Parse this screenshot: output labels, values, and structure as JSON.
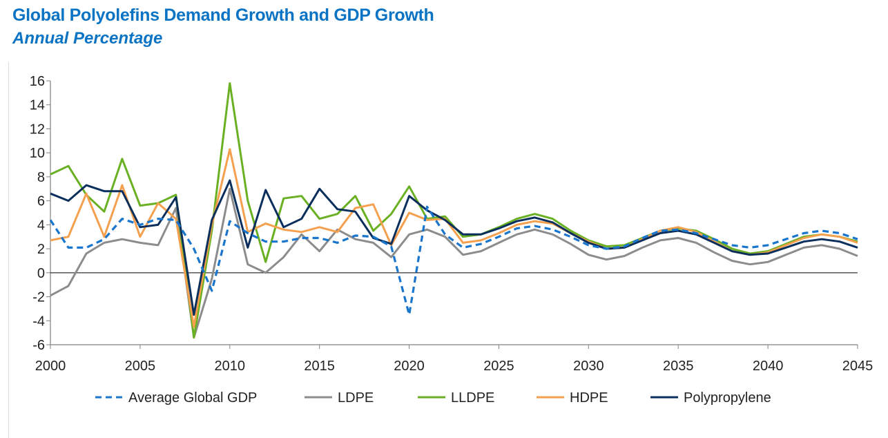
{
  "chart_data": {
    "type": "line",
    "title": "Global Polyolefins Demand Growth and GDP Growth",
    "subtitle": "Annual Percentage",
    "xlabel": "",
    "ylabel": "",
    "xlim": [
      2000,
      2045
    ],
    "ylim": [
      -6,
      16
    ],
    "yticks": [
      -6,
      -4,
      -2,
      0,
      2,
      4,
      6,
      8,
      10,
      12,
      14,
      16
    ],
    "xticks": [
      2000,
      2005,
      2010,
      2015,
      2020,
      2025,
      2030,
      2035,
      2040,
      2045
    ],
    "x": [
      2000,
      2001,
      2002,
      2003,
      2004,
      2005,
      2006,
      2007,
      2008,
      2009,
      2010,
      2011,
      2012,
      2013,
      2014,
      2015,
      2016,
      2017,
      2018,
      2019,
      2020,
      2021,
      2022,
      2023,
      2024,
      2025,
      2026,
      2027,
      2028,
      2029,
      2030,
      2031,
      2032,
      2033,
      2034,
      2035,
      2036,
      2037,
      2038,
      2039,
      2040,
      2041,
      2042,
      2043,
      2044,
      2045
    ],
    "series": [
      {
        "name": "Average Global GDP",
        "color": "#1a75cc",
        "dash": "dashed",
        "values": [
          4.4,
          2.1,
          2.1,
          2.8,
          4.5,
          4.0,
          4.5,
          4.4,
          2.0,
          -1.5,
          4.3,
          3.3,
          2.6,
          2.6,
          2.9,
          2.9,
          2.5,
          3.1,
          3.0,
          2.2,
          -3.5,
          5.5,
          3.2,
          2.1,
          2.4,
          3.0,
          3.7,
          3.9,
          3.6,
          3.0,
          2.3,
          2.0,
          2.2,
          2.9,
          3.5,
          3.6,
          3.3,
          2.8,
          2.3,
          2.1,
          2.3,
          2.8,
          3.3,
          3.5,
          3.3,
          2.8
        ]
      },
      {
        "name": "LDPE",
        "color": "#8c8c8c",
        "dash": "solid",
        "values": [
          -1.9,
          -1.1,
          1.6,
          2.5,
          2.8,
          2.5,
          2.3,
          5.4,
          -5.4,
          -0.5,
          7.0,
          0.7,
          0.0,
          1.3,
          3.2,
          1.8,
          3.6,
          2.8,
          2.5,
          1.3,
          3.2,
          3.6,
          3.0,
          1.5,
          1.8,
          2.5,
          3.2,
          3.6,
          3.2,
          2.4,
          1.5,
          1.1,
          1.4,
          2.1,
          2.7,
          2.9,
          2.5,
          1.7,
          1.0,
          0.7,
          0.9,
          1.5,
          2.1,
          2.3,
          2.0,
          1.4
        ]
      },
      {
        "name": "LLDPE",
        "color": "#6ab023",
        "dash": "solid",
        "values": [
          8.2,
          8.9,
          6.5,
          5.1,
          9.5,
          5.6,
          5.8,
          6.5,
          -5.4,
          3.5,
          15.8,
          6.0,
          0.9,
          6.2,
          6.4,
          4.5,
          4.9,
          6.4,
          3.5,
          4.9,
          7.2,
          4.5,
          4.7,
          3.0,
          3.2,
          3.8,
          4.5,
          4.9,
          4.5,
          3.5,
          2.7,
          2.2,
          2.3,
          2.9,
          3.5,
          3.7,
          3.5,
          2.8,
          2.0,
          1.6,
          1.8,
          2.4,
          3.0,
          3.2,
          3.0,
          2.6
        ]
      },
      {
        "name": "HDPE",
        "color": "#f5a04e",
        "dash": "solid",
        "values": [
          2.7,
          3.0,
          6.6,
          3.0,
          7.3,
          3.0,
          5.8,
          4.5,
          -4.5,
          4.0,
          10.3,
          3.4,
          4.1,
          3.6,
          3.4,
          3.8,
          3.4,
          5.4,
          5.7,
          2.3,
          5.0,
          4.4,
          4.5,
          2.5,
          2.7,
          3.3,
          4.0,
          4.3,
          4.1,
          3.3,
          2.6,
          2.0,
          2.1,
          2.8,
          3.5,
          3.8,
          3.4,
          2.6,
          1.8,
          1.5,
          1.7,
          2.3,
          2.9,
          3.2,
          3.0,
          2.5
        ]
      },
      {
        "name": "Polypropylene",
        "color": "#0b2f5c",
        "dash": "solid",
        "values": [
          6.6,
          6.0,
          7.3,
          6.8,
          6.8,
          3.8,
          4.0,
          6.3,
          -3.5,
          4.4,
          7.7,
          2.1,
          6.9,
          3.8,
          4.5,
          7.0,
          5.3,
          5.1,
          2.9,
          2.4,
          6.4,
          5.2,
          4.4,
          3.2,
          3.2,
          3.7,
          4.3,
          4.6,
          4.2,
          3.3,
          2.5,
          2.0,
          2.1,
          2.7,
          3.3,
          3.5,
          3.2,
          2.5,
          1.8,
          1.5,
          1.6,
          2.1,
          2.6,
          2.8,
          2.6,
          2.1
        ]
      }
    ],
    "legend_position": "bottom",
    "grid": false
  }
}
